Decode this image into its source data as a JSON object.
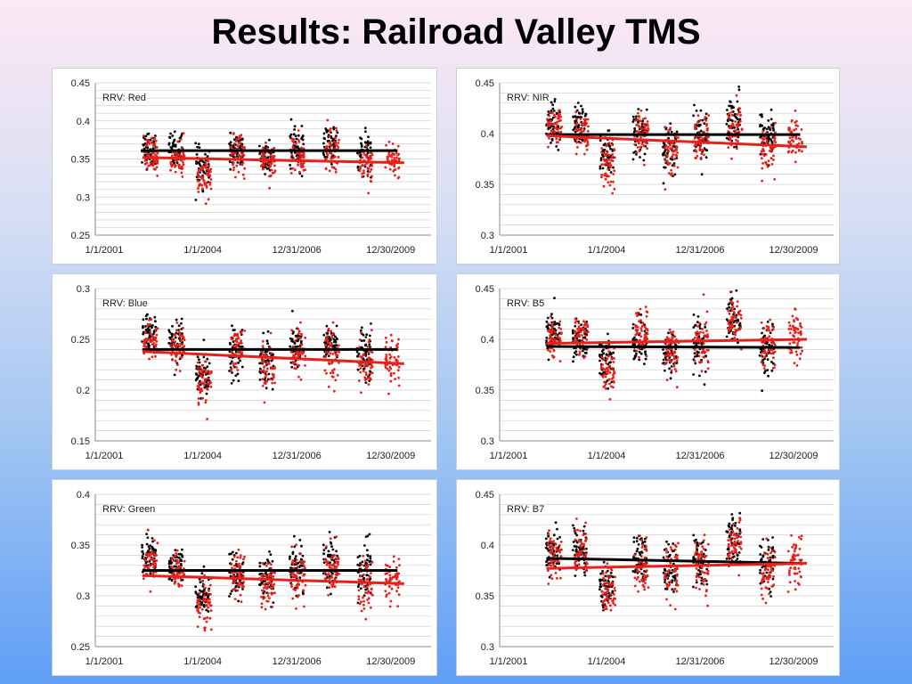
{
  "title": "Results: Railroad Valley TMS",
  "colors": {
    "series_a": "#000000",
    "series_b": "#e8201a",
    "grid": "#d0d0d0"
  },
  "chart_data": [
    {
      "type": "scatter",
      "label": "RRV: Red",
      "x_ticks": [
        "1/1/2001",
        "1/1/2004",
        "12/31/2006",
        "12/30/2009"
      ],
      "y_ticks": [
        "0.25",
        "0.3",
        "0.35",
        "0.4",
        "0.45"
      ],
      "ylim": [
        0.25,
        0.45
      ],
      "grid": true,
      "clusters": [
        {
          "x": 2002.6,
          "a": 0.365,
          "b": 0.355,
          "s": 0.012
        },
        {
          "x": 2003.4,
          "a": 0.362,
          "b": 0.352,
          "s": 0.011
        },
        {
          "x": 2004.2,
          "a": 0.338,
          "b": 0.326,
          "s": 0.012
        },
        {
          "x": 2005.2,
          "a": 0.358,
          "b": 0.355,
          "s": 0.012
        },
        {
          "x": 2006.1,
          "a": 0.352,
          "b": 0.346,
          "s": 0.012
        },
        {
          "x": 2007.0,
          "a": 0.362,
          "b": 0.355,
          "s": 0.013
        },
        {
          "x": 2008.0,
          "a": 0.37,
          "b": 0.36,
          "s": 0.013
        },
        {
          "x": 2009.0,
          "a": 0.355,
          "b": 0.345,
          "s": 0.014
        },
        {
          "x": 2009.8,
          "a": null,
          "b": 0.35,
          "s": 0.012
        }
      ],
      "trend_a": {
        "x": [
          2002.4,
          2010.0
        ],
        "y": [
          0.361,
          0.361
        ]
      },
      "trend_b": {
        "x": [
          2002.4,
          2010.2
        ],
        "y": [
          0.352,
          0.345
        ]
      }
    },
    {
      "type": "scatter",
      "label": "RRV: NIR",
      "x_ticks": [
        "1/1/2001",
        "1/1/2004",
        "12/31/2006",
        "12/30/2009"
      ],
      "y_ticks": [
        "0.3",
        "0.35",
        "0.4",
        "0.45"
      ],
      "ylim": [
        0.3,
        0.45
      ],
      "grid": true,
      "clusters": [
        {
          "x": 2002.6,
          "a": 0.41,
          "b": 0.405,
          "s": 0.01
        },
        {
          "x": 2003.4,
          "a": 0.408,
          "b": 0.4,
          "s": 0.01
        },
        {
          "x": 2004.2,
          "a": 0.378,
          "b": 0.37,
          "s": 0.011
        },
        {
          "x": 2005.2,
          "a": 0.4,
          "b": 0.398,
          "s": 0.011
        },
        {
          "x": 2006.1,
          "a": 0.385,
          "b": 0.385,
          "s": 0.012
        },
        {
          "x": 2007.0,
          "a": 0.398,
          "b": 0.392,
          "s": 0.013
        },
        {
          "x": 2008.0,
          "a": 0.415,
          "b": 0.405,
          "s": 0.012
        },
        {
          "x": 2009.0,
          "a": 0.395,
          "b": 0.385,
          "s": 0.013
        },
        {
          "x": 2009.8,
          "a": null,
          "b": 0.395,
          "s": 0.011
        }
      ],
      "trend_a": {
        "x": [
          2002.4,
          2010.0
        ],
        "y": [
          0.399,
          0.399
        ]
      },
      "trend_b": {
        "x": [
          2002.4,
          2010.2
        ],
        "y": [
          0.398,
          0.387
        ]
      }
    },
    {
      "type": "scatter",
      "label": "RRV: Blue",
      "x_ticks": [
        "1/1/2001",
        "1/1/2004",
        "12/31/2006",
        "12/30/2009"
      ],
      "y_ticks": [
        "0.15",
        "0.2",
        "0.25",
        "0.3"
      ],
      "ylim": [
        0.15,
        0.3
      ],
      "grid": true,
      "clusters": [
        {
          "x": 2002.6,
          "a": 0.255,
          "b": 0.248,
          "s": 0.01
        },
        {
          "x": 2003.4,
          "a": 0.245,
          "b": 0.24,
          "s": 0.01
        },
        {
          "x": 2004.2,
          "a": 0.215,
          "b": 0.208,
          "s": 0.011
        },
        {
          "x": 2005.2,
          "a": 0.238,
          "b": 0.242,
          "s": 0.012
        },
        {
          "x": 2006.1,
          "a": 0.23,
          "b": 0.225,
          "s": 0.011
        },
        {
          "x": 2007.0,
          "a": 0.245,
          "b": 0.238,
          "s": 0.012
        },
        {
          "x": 2008.0,
          "a": 0.245,
          "b": 0.235,
          "s": 0.012
        },
        {
          "x": 2009.0,
          "a": 0.238,
          "b": 0.225,
          "s": 0.013
        },
        {
          "x": 2009.8,
          "a": null,
          "b": 0.23,
          "s": 0.012
        }
      ],
      "trend_a": {
        "x": [
          2002.4,
          2010.0
        ],
        "y": [
          0.24,
          0.24
        ]
      },
      "trend_b": {
        "x": [
          2002.4,
          2010.2
        ],
        "y": [
          0.238,
          0.226
        ]
      }
    },
    {
      "type": "scatter",
      "label": "RRV: B5",
      "x_ticks": [
        "1/1/2001",
        "1/1/2004",
        "12/31/2006",
        "12/30/2009"
      ],
      "y_ticks": [
        "0.3",
        "0.35",
        "0.4",
        "0.45"
      ],
      "ylim": [
        0.3,
        0.45
      ],
      "grid": true,
      "clusters": [
        {
          "x": 2002.6,
          "a": 0.405,
          "b": 0.4,
          "s": 0.01
        },
        {
          "x": 2003.4,
          "a": 0.4,
          "b": 0.405,
          "s": 0.01
        },
        {
          "x": 2004.2,
          "a": 0.378,
          "b": 0.368,
          "s": 0.011
        },
        {
          "x": 2005.2,
          "a": 0.398,
          "b": 0.405,
          "s": 0.012
        },
        {
          "x": 2006.1,
          "a": 0.385,
          "b": 0.39,
          "s": 0.012
        },
        {
          "x": 2007.0,
          "a": 0.395,
          "b": 0.395,
          "s": 0.013
        },
        {
          "x": 2008.0,
          "a": 0.418,
          "b": 0.418,
          "s": 0.012
        },
        {
          "x": 2009.0,
          "a": 0.39,
          "b": 0.395,
          "s": 0.013
        },
        {
          "x": 2009.8,
          "a": null,
          "b": 0.405,
          "s": 0.012
        }
      ],
      "trend_a": {
        "x": [
          2002.4,
          2010.0
        ],
        "y": [
          0.393,
          0.392
        ]
      },
      "trend_b": {
        "x": [
          2002.4,
          2010.2
        ],
        "y": [
          0.396,
          0.4
        ]
      }
    },
    {
      "type": "scatter",
      "label": "RRV: Green",
      "x_ticks": [
        "1/1/2001",
        "1/1/2004",
        "12/31/2006",
        "12/30/2009"
      ],
      "y_ticks": [
        "0.25",
        "0.3",
        "0.35",
        "0.4"
      ],
      "ylim": [
        0.25,
        0.4
      ],
      "grid": true,
      "clusters": [
        {
          "x": 2002.6,
          "a": 0.34,
          "b": 0.332,
          "s": 0.01
        },
        {
          "x": 2003.4,
          "a": 0.33,
          "b": 0.322,
          "s": 0.01
        },
        {
          "x": 2004.2,
          "a": 0.302,
          "b": 0.292,
          "s": 0.011
        },
        {
          "x": 2005.2,
          "a": 0.318,
          "b": 0.322,
          "s": 0.012
        },
        {
          "x": 2006.1,
          "a": 0.315,
          "b": 0.31,
          "s": 0.011
        },
        {
          "x": 2007.0,
          "a": 0.328,
          "b": 0.32,
          "s": 0.012
        },
        {
          "x": 2008.0,
          "a": 0.335,
          "b": 0.325,
          "s": 0.012
        },
        {
          "x": 2009.0,
          "a": 0.325,
          "b": 0.31,
          "s": 0.013
        },
        {
          "x": 2009.8,
          "a": null,
          "b": 0.315,
          "s": 0.012
        }
      ],
      "trend_a": {
        "x": [
          2002.4,
          2010.0
        ],
        "y": [
          0.325,
          0.325
        ]
      },
      "trend_b": {
        "x": [
          2002.4,
          2010.2
        ],
        "y": [
          0.32,
          0.312
        ]
      }
    },
    {
      "type": "scatter",
      "label": "RRV: B7",
      "x_ticks": [
        "1/1/2001",
        "1/1/2004",
        "12/31/2006",
        "12/30/2009"
      ],
      "y_ticks": [
        "0.3",
        "0.35",
        "0.4",
        "0.45"
      ],
      "ylim": [
        0.3,
        0.45
      ],
      "grid": true,
      "clusters": [
        {
          "x": 2002.6,
          "a": 0.395,
          "b": 0.39,
          "s": 0.011
        },
        {
          "x": 2003.4,
          "a": 0.395,
          "b": 0.395,
          "s": 0.011
        },
        {
          "x": 2004.2,
          "a": 0.36,
          "b": 0.355,
          "s": 0.012
        },
        {
          "x": 2005.2,
          "a": 0.385,
          "b": 0.38,
          "s": 0.013
        },
        {
          "x": 2006.1,
          "a": 0.378,
          "b": 0.375,
          "s": 0.013
        },
        {
          "x": 2007.0,
          "a": 0.385,
          "b": 0.378,
          "s": 0.013
        },
        {
          "x": 2008.0,
          "a": 0.405,
          "b": 0.4,
          "s": 0.012
        },
        {
          "x": 2009.0,
          "a": 0.38,
          "b": 0.37,
          "s": 0.013
        },
        {
          "x": 2009.8,
          "a": null,
          "b": 0.385,
          "s": 0.012
        }
      ],
      "trend_a": {
        "x": [
          2002.4,
          2010.0
        ],
        "y": [
          0.387,
          0.382
        ]
      },
      "trend_b": {
        "x": [
          2002.4,
          2010.2
        ],
        "y": [
          0.377,
          0.382
        ]
      }
    }
  ]
}
